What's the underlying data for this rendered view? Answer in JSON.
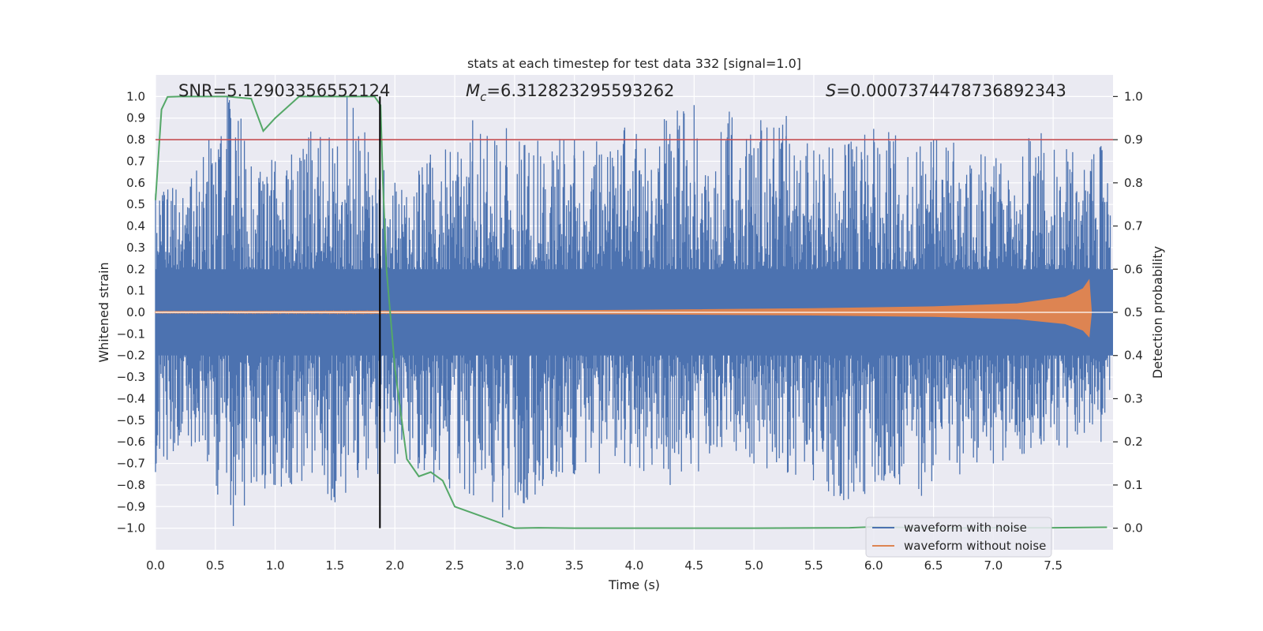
{
  "chart_data": {
    "type": "line",
    "title": "stats at each timestep for test data 332 [signal=1.0]",
    "xlabel": "Time (s)",
    "ylabel": "Whitened strain",
    "y2label": "Detection probability",
    "xlim": [
      0.0,
      8.0
    ],
    "ylim": [
      -1.1,
      1.1
    ],
    "y2lim": [
      -0.05,
      1.05
    ],
    "x_ticks": [
      "0.0",
      "0.5",
      "1.0",
      "1.5",
      "2.0",
      "2.5",
      "3.0",
      "3.5",
      "4.0",
      "4.5",
      "5.0",
      "5.5",
      "6.0",
      "6.5",
      "7.0",
      "7.5"
    ],
    "y_ticks": [
      "1.0",
      "0.9",
      "0.8",
      "0.7",
      "0.6",
      "0.5",
      "0.4",
      "0.3",
      "0.2",
      "0.1",
      "0.0",
      "−0.1",
      "−0.2",
      "−0.3",
      "−0.4",
      "−0.5",
      "−0.6",
      "−0.7",
      "−0.8",
      "−0.9",
      "−1.0"
    ],
    "y2_ticks": [
      "1.0",
      "0.9",
      "0.8",
      "0.7",
      "0.6",
      "0.5",
      "0.4",
      "0.3",
      "0.2",
      "0.1",
      "0.0"
    ],
    "grid": true,
    "annotations": {
      "snr": "SNR=5.12903356552124",
      "mc_symbol": "M",
      "mc_sub": "c",
      "mc_value": "=6.312823295593262",
      "s_symbol": "S",
      "s_value": "=0.0007374478736892343"
    },
    "threshold": {
      "y2": 0.9,
      "color": "#c44e52"
    },
    "vline": {
      "x": 1.875,
      "y_range": [
        -1.0,
        1.0
      ],
      "color": "#000000"
    },
    "series": [
      {
        "name": "waveform with noise",
        "color": "#4c72b0",
        "envelope_upper": [
          [
            0.0,
            0.55
          ],
          [
            0.3,
            0.62
          ],
          [
            0.6,
            1.0
          ],
          [
            1.0,
            0.7
          ],
          [
            1.6,
            1.0
          ],
          [
            2.0,
            0.6
          ],
          [
            2.65,
            0.89
          ],
          [
            3.5,
            0.8
          ],
          [
            4.5,
            0.96
          ],
          [
            5.27,
            0.91
          ],
          [
            5.5,
            0.75
          ],
          [
            6.0,
            0.85
          ],
          [
            6.5,
            0.8
          ],
          [
            7.4,
            0.83
          ],
          [
            7.9,
            0.77
          ]
        ],
        "envelope_lower": [
          [
            0.0,
            -0.74
          ],
          [
            0.3,
            -0.62
          ],
          [
            0.65,
            -0.99
          ],
          [
            1.0,
            -0.8
          ],
          [
            1.5,
            -0.88
          ],
          [
            2.0,
            -0.7
          ],
          [
            2.9,
            -0.95
          ],
          [
            3.5,
            -0.75
          ],
          [
            4.3,
            -0.8
          ],
          [
            5.0,
            -0.7
          ],
          [
            5.75,
            -0.87
          ],
          [
            6.4,
            -0.85
          ],
          [
            7.0,
            -0.7
          ],
          [
            7.9,
            -0.6
          ]
        ]
      },
      {
        "name": "waveform without noise",
        "color": "#dd8452",
        "amplitude_points": [
          [
            0.0,
            0.004
          ],
          [
            2.0,
            0.006
          ],
          [
            4.0,
            0.01
          ],
          [
            5.5,
            0.017
          ],
          [
            6.5,
            0.026
          ],
          [
            7.2,
            0.04
          ],
          [
            7.6,
            0.07
          ],
          [
            7.75,
            0.11
          ],
          [
            7.8,
            0.15
          ],
          [
            7.82,
            0.0
          ],
          [
            8.0,
            0.0
          ]
        ]
      },
      {
        "name": "detection probability",
        "color": "#55a868",
        "axis": "y2",
        "x": [
          0.0,
          0.05,
          0.1,
          0.2,
          0.4,
          0.6,
          0.8,
          0.9,
          1.0,
          1.2,
          1.4,
          1.6,
          1.83,
          1.88,
          1.9,
          1.93,
          2.0,
          2.1,
          2.2,
          2.3,
          2.4,
          2.5,
          3.0,
          3.2,
          3.5,
          5.0,
          5.8,
          6.0,
          6.5,
          7.0,
          7.5,
          7.95
        ],
        "values": [
          0.76,
          0.97,
          0.999,
          1.0,
          1.0,
          1.0,
          0.995,
          0.92,
          0.95,
          1.0,
          1.0,
          1.0,
          1.0,
          0.98,
          0.8,
          0.6,
          0.37,
          0.16,
          0.12,
          0.13,
          0.11,
          0.05,
          0.0,
          0.001,
          0.0,
          0.0,
          0.001,
          0.003,
          0.0,
          0.001,
          0.001,
          0.002
        ]
      }
    ],
    "legend": {
      "position": "bottom-right",
      "entries": [
        "waveform with noise",
        "waveform without noise"
      ]
    },
    "colors": {
      "plot_bg": "#eaeaf2",
      "grid": "#ffffff"
    }
  }
}
